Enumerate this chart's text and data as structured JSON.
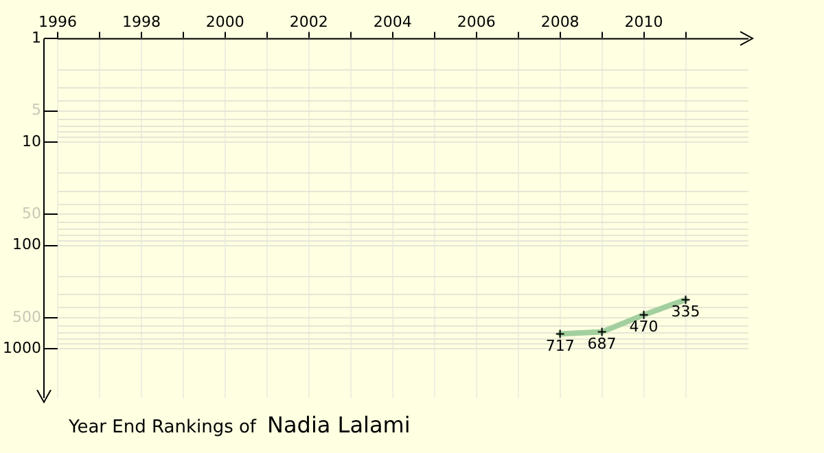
{
  "chart_data": {
    "type": "line",
    "title": "Year End Rankings of",
    "subtitle": "Nadia Lalami",
    "x": [
      2008,
      2009,
      2010,
      2011
    ],
    "series": [
      {
        "color": "#a3cf9f",
        "values": [
          717,
          687,
          470,
          335
        ]
      }
    ],
    "xlim": [
      1996,
      2012.5
    ],
    "xticks": [
      1996,
      {
        "value": 1997,
        "label": null
      },
      1998,
      {
        "value": 1999,
        "label": null
      },
      2000,
      {
        "value": 2001,
        "label": null
      },
      2002,
      {
        "value": 2003,
        "label": null
      },
      2004,
      {
        "value": 2005,
        "label": null
      },
      2006,
      {
        "value": 2007,
        "label": null
      },
      2008,
      {
        "value": 2009,
        "label": null
      },
      2010,
      {
        "value": 2011,
        "label": null
      }
    ],
    "ylim": [
      3000,
      1
    ],
    "log": true,
    "yticks": [
      1,
      {
        "value": 2,
        "label": null
      },
      {
        "value": 3,
        "label": null
      },
      {
        "value": 4,
        "label": null
      },
      5,
      {
        "value": 6,
        "label": null
      },
      {
        "value": 7,
        "label": null
      },
      {
        "value": 8,
        "label": null
      },
      {
        "value": 9,
        "label": null
      },
      10,
      {
        "value": 20,
        "label": null
      },
      {
        "value": 30,
        "label": null
      },
      {
        "value": 40,
        "label": null
      },
      50,
      {
        "value": 60,
        "label": null
      },
      {
        "value": 70,
        "label": null
      },
      {
        "value": 80,
        "label": null
      },
      {
        "value": 90,
        "label": null
      },
      100,
      {
        "value": 200,
        "label": null
      },
      {
        "value": 300,
        "label": null
      },
      {
        "value": 400,
        "label": null
      },
      500,
      {
        "value": 600,
        "label": null
      },
      {
        "value": 700,
        "label": null
      },
      {
        "value": 800,
        "label": null
      },
      {
        "value": 900,
        "label": null
      },
      1000
    ],
    "grid": true,
    "marker": "cross",
    "line_style": "solid",
    "data_labels": true
  }
}
